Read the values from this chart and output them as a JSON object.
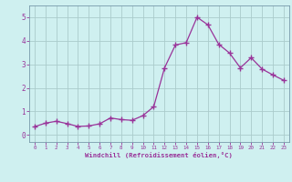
{
  "x": [
    0,
    1,
    2,
    3,
    4,
    5,
    6,
    7,
    8,
    9,
    10,
    11,
    12,
    13,
    14,
    15,
    16,
    17,
    18,
    19,
    20,
    21,
    22,
    23
  ],
  "y": [
    0.35,
    0.5,
    0.58,
    0.48,
    0.36,
    0.38,
    0.47,
    0.72,
    0.65,
    0.62,
    0.82,
    1.2,
    2.85,
    3.82,
    3.92,
    5.0,
    4.68,
    3.85,
    3.48,
    2.85,
    3.28,
    2.8,
    2.55,
    2.32
  ],
  "line_color": "#993399",
  "marker": "+",
  "marker_size": 4,
  "marker_linewidth": 1.0,
  "linewidth": 0.9,
  "background_color": "#cff0f0",
  "grid_color": "#aacccc",
  "xlabel": "Windchill (Refroidissement éolien,°C)",
  "xlabel_color": "#993399",
  "tick_color": "#993399",
  "label_color": "#993399",
  "ylim": [
    -0.3,
    5.5
  ],
  "xlim": [
    -0.5,
    23.5
  ],
  "xticks": [
    0,
    1,
    2,
    3,
    4,
    5,
    6,
    7,
    8,
    9,
    10,
    11,
    12,
    13,
    14,
    15,
    16,
    17,
    18,
    19,
    20,
    21,
    22,
    23
  ],
  "yticks": [
    0,
    1,
    2,
    3,
    4,
    5
  ],
  "spine_color": "#7799aa",
  "xtick_fontsize": 4.2,
  "ytick_fontsize": 5.5,
  "xlabel_fontsize": 5.2
}
